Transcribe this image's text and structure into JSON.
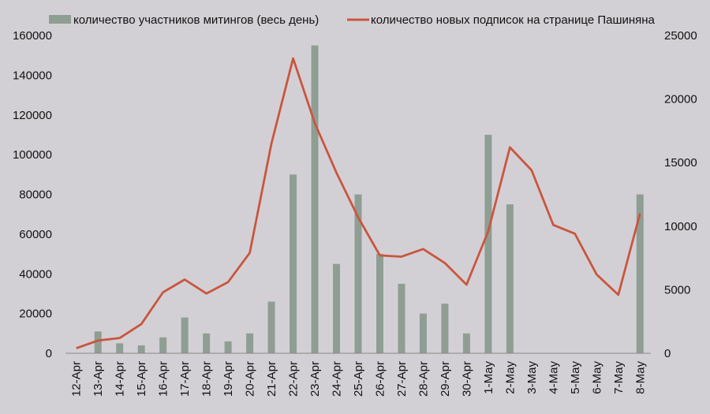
{
  "chart_data": {
    "type": "bar+line",
    "categories": [
      "12-Apr",
      "13-Apr",
      "14-Apr",
      "15-Apr",
      "16-Apr",
      "17-Apr",
      "18-Apr",
      "19-Apr",
      "20-Apr",
      "21-Apr",
      "22-Apr",
      "23-Apr",
      "24-Apr",
      "25-Apr",
      "26-Apr",
      "27-Apr",
      "28-Apr",
      "29-Apr",
      "30-Apr",
      "1-May",
      "2-May",
      "3-May",
      "4-May",
      "5-May",
      "6-May",
      "7-May",
      "8-May"
    ],
    "series": [
      {
        "name": "количество участников митингов (весь день)",
        "type": "bar",
        "axis": "left",
        "color": "#8f9e93",
        "values": [
          null,
          11000,
          5000,
          4000,
          8000,
          18000,
          10000,
          6000,
          10000,
          26000,
          90000,
          155000,
          45000,
          80000,
          50000,
          35000,
          20000,
          25000,
          10000,
          110000,
          75000,
          null,
          null,
          null,
          null,
          null,
          80000
        ]
      },
      {
        "name": "количество новых подписок на странице Пашиняна",
        "type": "line",
        "axis": "right",
        "color": "#c9563f",
        "values": [
          400,
          1000,
          1200,
          2300,
          4800,
          5800,
          4700,
          5600,
          7900,
          16500,
          23200,
          18100,
          14200,
          10700,
          7700,
          7600,
          8200,
          7100,
          5400,
          9600,
          16200,
          14400,
          10100,
          9400,
          6200,
          4600,
          11000
        ]
      }
    ],
    "y_left": {
      "range": [
        0,
        160000
      ],
      "ticks": [
        0,
        20000,
        40000,
        60000,
        80000,
        100000,
        120000,
        140000,
        160000
      ]
    },
    "y_right": {
      "range": [
        0,
        25000
      ],
      "ticks": [
        0,
        5000,
        10000,
        15000,
        20000,
        25000
      ]
    },
    "grid": false,
    "legend": "top"
  }
}
